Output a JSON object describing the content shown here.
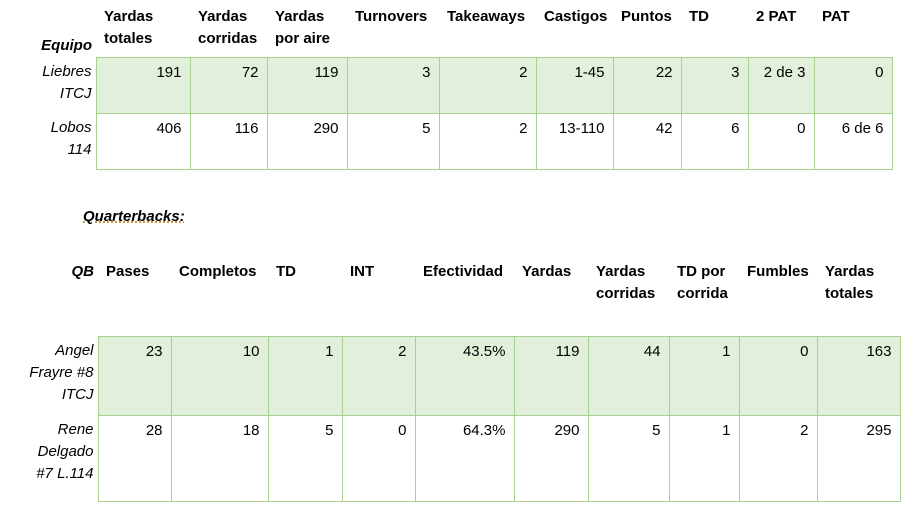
{
  "teams": {
    "header_label": "Equipo",
    "columns": [
      "Yardas totales",
      "Yardas corridas",
      "Yardas por aire",
      "Turnovers",
      "Takeaways",
      "Castigos",
      "Puntos",
      "TD",
      "2 PAT",
      "PAT"
    ],
    "rows": [
      {
        "name": "Liebres ITCJ",
        "values": [
          "191",
          "72",
          "119",
          "3",
          "2",
          "1-45",
          "22",
          "3",
          "2 de 3",
          "0"
        ]
      },
      {
        "name": "Lobos 114",
        "values": [
          "406",
          "116",
          "290",
          "5",
          "2",
          "13-110",
          "42",
          "6",
          "0",
          "6 de 6"
        ]
      }
    ]
  },
  "section_title": "Quarterbacks:",
  "qbs": {
    "header_label": "QB",
    "columns": [
      "Pases",
      "Completos",
      "TD",
      "INT",
      "Efectividad",
      "Yardas",
      "Yardas corridas",
      "TD por corrida",
      "Fumbles",
      "Yardas totales"
    ],
    "rows": [
      {
        "name": "Angel Frayre #8 ITCJ",
        "values": [
          "23",
          "10",
          "1",
          "2",
          "43.5%",
          "119",
          "44",
          "1",
          "0",
          "163"
        ]
      },
      {
        "name": "Rene Delgado #7 L.114",
        "values": [
          "28",
          "18",
          "5",
          "0",
          "64.3%",
          "290",
          "5",
          "1",
          "2",
          "295"
        ]
      }
    ]
  }
}
